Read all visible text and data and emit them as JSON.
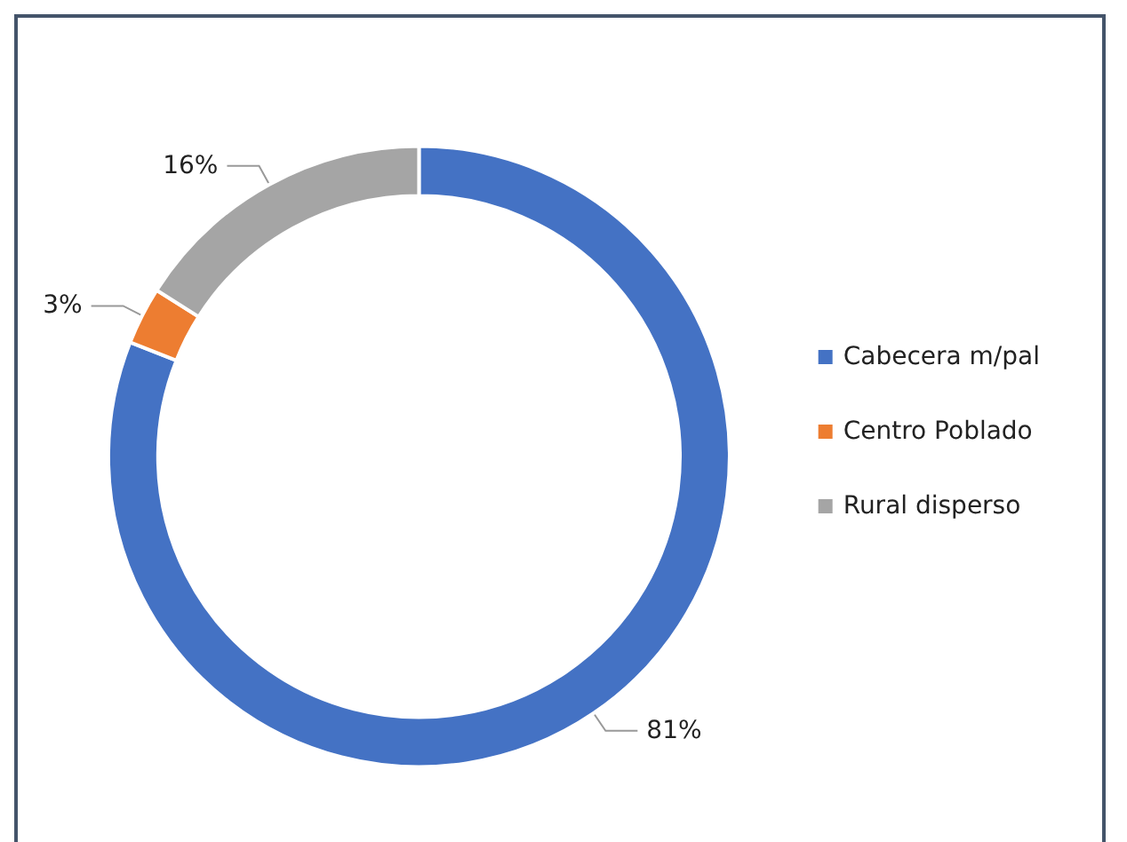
{
  "chart_data": {
    "type": "donut",
    "categories": [
      "Cabecera m/pal",
      "Centro Poblado",
      "Rural disperso"
    ],
    "values": [
      81,
      3,
      16
    ],
    "colors": [
      "#4472c4",
      "#ed7d31",
      "#a5a5a5"
    ],
    "value_labels": [
      "81%",
      "3%",
      "16%"
    ],
    "legend": "right"
  }
}
